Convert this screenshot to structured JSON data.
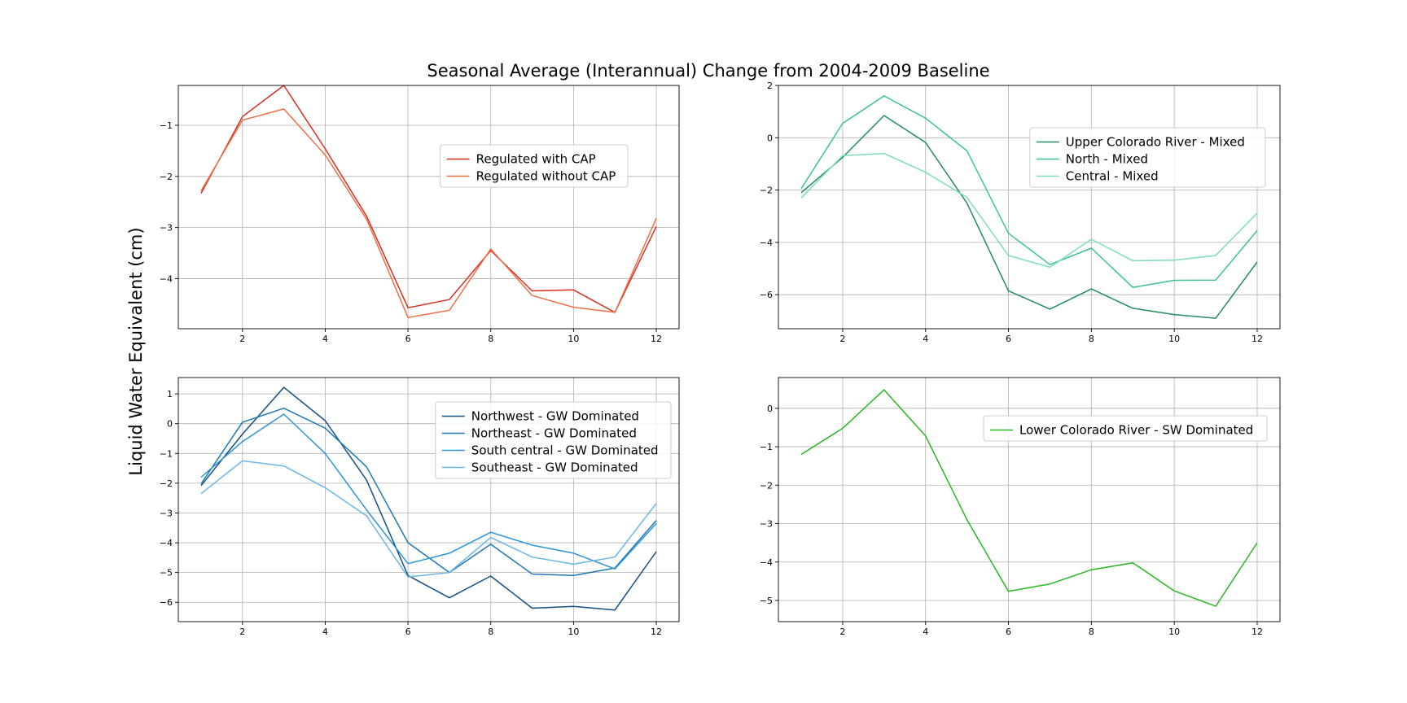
{
  "figure": {
    "suptitle": "Seasonal Average (Interannual) Change from 2004-2009 Baseline",
    "ylabel": "Liquid Water Equivalent (cm)"
  },
  "chart_data": [
    {
      "type": "line",
      "title": "",
      "xlabel": "",
      "ylabel": "",
      "x": [
        1,
        2,
        3,
        4,
        5,
        6,
        7,
        8,
        9,
        10,
        11,
        12
      ],
      "xlim": [
        0.45,
        12.55
      ],
      "ylim": [
        -4.98,
        -0.22
      ],
      "xticks": [
        2,
        4,
        6,
        8,
        10,
        12
      ],
      "yticks": [
        -4,
        -3,
        -2,
        -1
      ],
      "grid": true,
      "legend_position": "center-right",
      "series": [
        {
          "name": "Regulated with CAP",
          "color": "#d62f1f",
          "values": [
            -2.33,
            -0.83,
            -0.22,
            -1.46,
            -2.78,
            -4.57,
            -4.41,
            -3.45,
            -4.24,
            -4.22,
            -4.66,
            -2.98
          ]
        },
        {
          "name": "Regulated without CAP",
          "color": "#ec7046",
          "values": [
            -2.28,
            -0.9,
            -0.68,
            -1.58,
            -2.84,
            -4.76,
            -4.62,
            -3.42,
            -4.33,
            -4.56,
            -4.66,
            -2.82
          ]
        }
      ]
    },
    {
      "type": "line",
      "title": "",
      "xlabel": "",
      "ylabel": "",
      "x": [
        1,
        2,
        3,
        4,
        5,
        6,
        7,
        8,
        9,
        10,
        11,
        12
      ],
      "xlim": [
        0.45,
        12.55
      ],
      "ylim": [
        -7.3,
        2.0
      ],
      "xticks": [
        2,
        4,
        6,
        8,
        10,
        12
      ],
      "yticks": [
        -6,
        -4,
        -2,
        0,
        2
      ],
      "grid": true,
      "legend_position": "upper-right",
      "series": [
        {
          "name": "Upper Colorado River - Mixed",
          "color": "#238b62",
          "values": [
            -2.1,
            -0.75,
            0.85,
            -0.18,
            -2.5,
            -5.85,
            -6.55,
            -5.78,
            -6.52,
            -6.76,
            -6.9,
            -4.75
          ]
        },
        {
          "name": "North - Mixed",
          "color": "#3cc196",
          "values": [
            -1.95,
            0.55,
            1.6,
            0.75,
            -0.5,
            -3.65,
            -4.85,
            -4.22,
            -5.72,
            -5.45,
            -5.44,
            -3.55
          ]
        },
        {
          "name": "Central - Mixed",
          "color": "#7ddcc0",
          "values": [
            -2.3,
            -0.68,
            -0.6,
            -1.32,
            -2.28,
            -4.5,
            -4.95,
            -3.88,
            -4.7,
            -4.68,
            -4.5,
            -2.88
          ]
        }
      ]
    },
    {
      "type": "line",
      "title": "",
      "xlabel": "",
      "ylabel": "",
      "x": [
        1,
        2,
        3,
        4,
        5,
        6,
        7,
        8,
        9,
        10,
        11,
        12
      ],
      "xlim": [
        0.45,
        12.55
      ],
      "ylim": [
        -6.65,
        1.55
      ],
      "xticks": [
        2,
        4,
        6,
        8,
        10,
        12
      ],
      "yticks": [
        -6,
        -5,
        -4,
        -3,
        -2,
        -1,
        0,
        1
      ],
      "grid": true,
      "legend_position": "upper-right",
      "series": [
        {
          "name": "Northwest - GW Dominated",
          "color": "#134f82",
          "values": [
            -2.08,
            -0.35,
            1.22,
            0.1,
            -1.9,
            -5.1,
            -5.85,
            -5.12,
            -6.2,
            -6.14,
            -6.26,
            -4.3
          ]
        },
        {
          "name": "Northeast - GW Dominated",
          "color": "#1f77b4",
          "values": [
            -2.02,
            0.05,
            0.52,
            -0.15,
            -1.45,
            -4.0,
            -5.0,
            -4.05,
            -5.05,
            -5.1,
            -4.85,
            -3.25
          ]
        },
        {
          "name": "South central - GW Dominated",
          "color": "#2b95d6",
          "values": [
            -1.8,
            -0.6,
            0.32,
            -1.0,
            -2.9,
            -4.7,
            -4.35,
            -3.65,
            -4.08,
            -4.35,
            -4.88,
            -3.35
          ]
        },
        {
          "name": "Southeast - GW Dominated",
          "color": "#6ab6e8",
          "values": [
            -2.35,
            -1.25,
            -1.42,
            -2.15,
            -3.1,
            -5.15,
            -5.0,
            -3.82,
            -4.48,
            -4.72,
            -4.48,
            -2.68
          ]
        }
      ]
    },
    {
      "type": "line",
      "title": "",
      "xlabel": "",
      "ylabel": "",
      "x": [
        1,
        2,
        3,
        4,
        5,
        6,
        7,
        8,
        9,
        10,
        11,
        12
      ],
      "xlim": [
        0.45,
        12.55
      ],
      "ylim": [
        -5.55,
        0.8
      ],
      "xticks": [
        2,
        4,
        6,
        8,
        10,
        12
      ],
      "yticks": [
        -5,
        -4,
        -3,
        -2,
        -1,
        0
      ],
      "grid": true,
      "legend_position": "upper-right",
      "series": [
        {
          "name": "Lower Colorado River - SW Dominated",
          "color": "#28b623",
          "values": [
            -1.2,
            -0.52,
            0.48,
            -0.72,
            -2.9,
            -4.76,
            -4.57,
            -4.2,
            -4.02,
            -4.75,
            -5.15,
            -3.5
          ]
        }
      ]
    }
  ]
}
